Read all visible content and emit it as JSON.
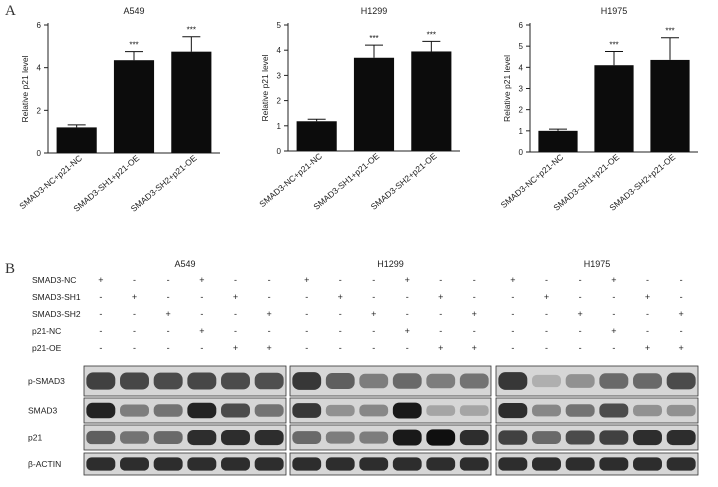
{
  "panel_labels": {
    "a": "A",
    "b": "B"
  },
  "chart_data": [
    {
      "type": "bar",
      "title": "A549",
      "ylabel": "Relative p21 level",
      "categories": [
        "SMAD3-NC+p21-NC",
        "SMAD3-SH1+p21-OE",
        "SMAD3-SH2+p21-OE"
      ],
      "values": [
        1.2,
        4.35,
        4.75
      ],
      "errors": [
        0.12,
        0.4,
        0.7
      ],
      "significance": [
        "",
        "***",
        "***"
      ],
      "ylim": [
        0,
        6
      ],
      "yticks": [
        "0",
        "2",
        "4",
        "6"
      ]
    },
    {
      "type": "bar",
      "title": "H1299",
      "ylabel": "Relative p21 level",
      "categories": [
        "SMAD3-NC+p21-NC",
        "SMAD3-SH1+p21-OE",
        "SMAD3-SH2+p21-OE"
      ],
      "values": [
        1.18,
        3.7,
        3.95
      ],
      "errors": [
        0.08,
        0.5,
        0.4
      ],
      "significance": [
        "",
        "***",
        "***"
      ],
      "ylim": [
        0,
        5
      ],
      "yticks": [
        "0",
        "1",
        "2",
        "3",
        "4",
        "5"
      ]
    },
    {
      "type": "bar",
      "title": "H1975",
      "ylabel": "Relative p21 level",
      "categories": [
        "SMAD3-NC+p21-NC",
        "SMAD3-SH1+p21-OE",
        "SMAD3-SH2+p21-OE"
      ],
      "values": [
        1.0,
        4.1,
        4.35
      ],
      "errors": [
        0.08,
        0.65,
        1.05
      ],
      "significance": [
        "",
        "***",
        "***"
      ],
      "ylim": [
        0,
        6
      ],
      "yticks": [
        "0",
        "1",
        "2",
        "3",
        "4",
        "5",
        "6"
      ]
    }
  ],
  "western_blot": {
    "cell_lines": [
      "A549",
      "H1299",
      "H1975"
    ],
    "conditions": [
      {
        "label": "SMAD3-NC",
        "signs": [
          "+",
          "-",
          "-",
          "+",
          "-",
          "-"
        ]
      },
      {
        "label": "SMAD3-SH1",
        "signs": [
          "-",
          "+",
          "-",
          "-",
          "+",
          "-"
        ]
      },
      {
        "label": "SMAD3-SH2",
        "signs": [
          "-",
          "-",
          "+",
          "-",
          "-",
          "+"
        ]
      },
      {
        "label": "p21-NC",
        "signs": [
          "-",
          "-",
          "-",
          "+",
          "-",
          "-"
        ]
      },
      {
        "label": "p21-OE",
        "signs": [
          "-",
          "-",
          "-",
          "-",
          "+",
          "+"
        ]
      }
    ],
    "proteins": [
      {
        "label": "p-SMAD3",
        "intensity": [
          [
            0.75,
            0.72,
            0.7,
            0.72,
            0.7,
            0.68
          ],
          [
            0.8,
            0.6,
            0.45,
            0.55,
            0.45,
            0.5
          ],
          [
            0.8,
            0.2,
            0.35,
            0.55,
            0.55,
            0.7
          ]
        ]
      },
      {
        "label": "SMAD3",
        "intensity": [
          [
            0.9,
            0.45,
            0.5,
            0.9,
            0.7,
            0.5
          ],
          [
            0.8,
            0.35,
            0.4,
            0.95,
            0.25,
            0.25
          ],
          [
            0.85,
            0.4,
            0.5,
            0.7,
            0.35,
            0.35
          ]
        ]
      },
      {
        "label": "p21",
        "intensity": [
          [
            0.6,
            0.5,
            0.55,
            0.85,
            0.85,
            0.85
          ],
          [
            0.55,
            0.45,
            0.45,
            0.95,
            1.0,
            0.85
          ],
          [
            0.75,
            0.55,
            0.7,
            0.75,
            0.85,
            0.85
          ]
        ]
      },
      {
        "label": "β-ACTIN",
        "intensity": [
          [
            0.85,
            0.85,
            0.85,
            0.85,
            0.85,
            0.85
          ],
          [
            0.85,
            0.85,
            0.85,
            0.85,
            0.85,
            0.85
          ],
          [
            0.85,
            0.85,
            0.85,
            0.85,
            0.85,
            0.85
          ]
        ]
      }
    ]
  }
}
